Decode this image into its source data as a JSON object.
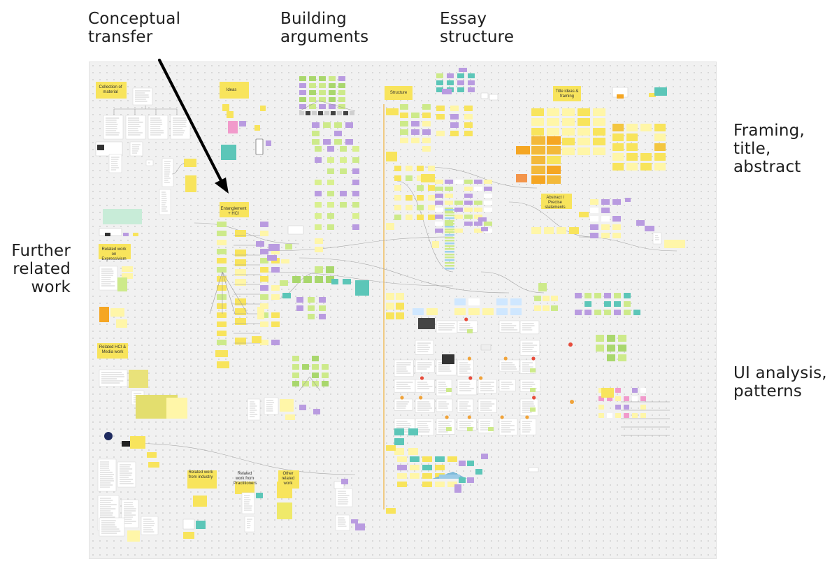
{
  "annotations": {
    "conceptual_transfer": [
      "Conceptual",
      "transfer"
    ],
    "building_arguments": [
      "Building",
      "arguments"
    ],
    "essay_structure": [
      "Essay",
      "structure"
    ],
    "framing": [
      "Framing,",
      "title,",
      "abstract"
    ],
    "further_related": [
      "Further",
      "related",
      "work"
    ],
    "ui_analysis": [
      "UI analysis,",
      "patterns"
    ]
  },
  "board": {
    "sections": {
      "collection": "Collection of material",
      "ideas": "Ideas",
      "structure": "Structure",
      "title_ideas": "Title ideas & framing",
      "abstract": "Abstract / Precise statements",
      "related_expressivism": "Related work on Expressivism",
      "related_hci": "Related HCI & Media work",
      "related_industry": "Related work from industry",
      "related_practitioners": "Related work from Practitioners",
      "other_related": "Other related work",
      "entanglement": "Entanglement + HCI"
    },
    "colors": {
      "sticky_yellow": "#f8e45c",
      "sticky_light_yellow": "#fff6a8",
      "sticky_green": "#cdea8a",
      "sticky_purple": "#b99be0",
      "sticky_pink": "#f19acb",
      "sticky_teal": "#5cc6b8",
      "sticky_orange": "#f5a623",
      "divider_orange": "#f0b54a"
    }
  }
}
